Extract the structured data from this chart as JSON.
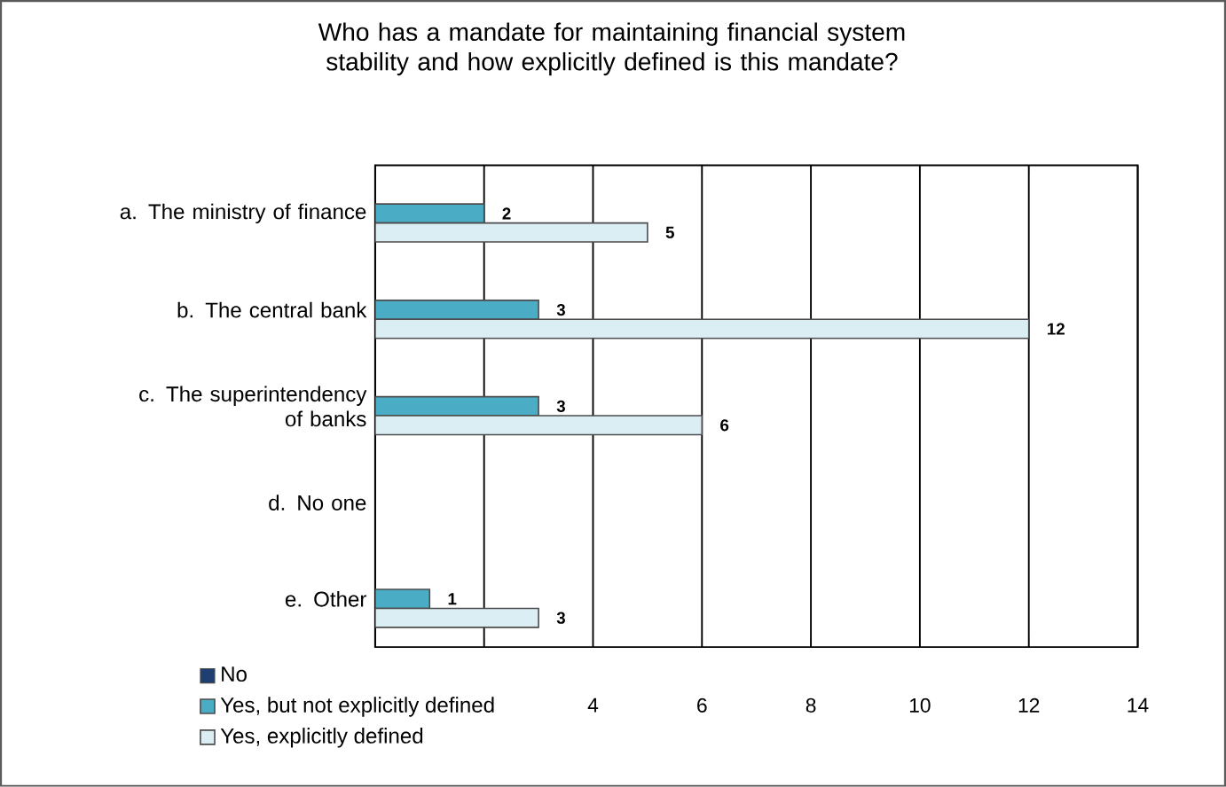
{
  "chart_data": {
    "type": "bar",
    "orientation": "horizontal",
    "title": "Who has a mandate for maintaining financial system stability and how explicitly defined is this mandate?",
    "categories": [
      "a. The ministry of finance",
      "b. The central bank",
      "c. The superintendency of banks",
      "d. No one",
      "e. Other"
    ],
    "series": [
      {
        "name": "No",
        "color": "#1f3f73",
        "values": [
          null,
          null,
          null,
          null,
          null
        ]
      },
      {
        "name": "Yes, but not explicitly defined",
        "color": "#4bacc6",
        "values": [
          2,
          3,
          3,
          null,
          1
        ],
        "value_labels": [
          "2",
          "3",
          "3",
          null,
          "1"
        ]
      },
      {
        "name": "Yes, explicitly defined",
        "color": "#daeef3",
        "values": [
          5,
          12,
          6,
          null,
          3
        ],
        "value_labels": [
          "5",
          "12",
          "6",
          null,
          "3"
        ]
      }
    ],
    "xlim": [
      0,
      14
    ],
    "xticks": [
      {
        "value": 0,
        "label": null
      },
      {
        "value": 2,
        "label": null
      },
      4,
      6,
      8,
      10,
      12,
      14
    ],
    "grid": "x",
    "legend": "bottom left"
  }
}
